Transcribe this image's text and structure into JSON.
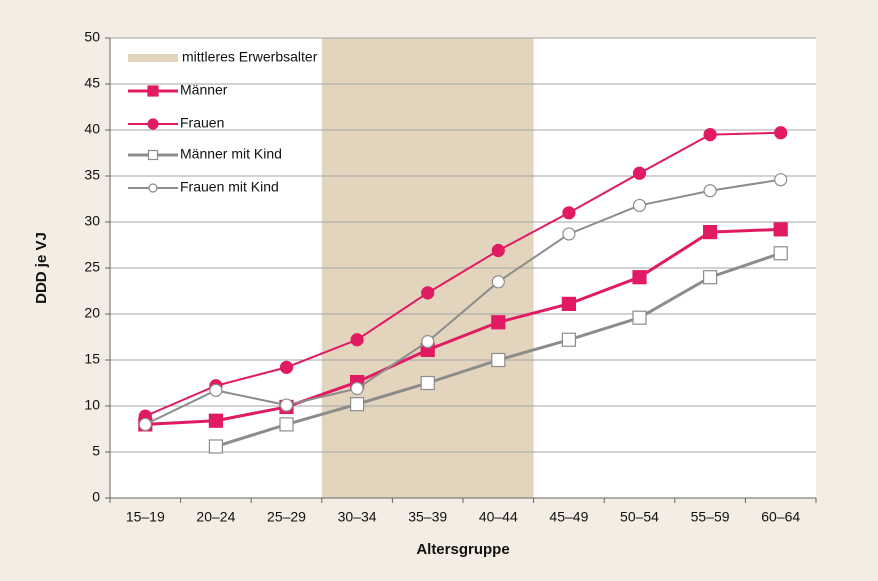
{
  "chart_data": {
    "type": "line",
    "x_label": "Altersgruppe",
    "y_label": "DDD je VJ",
    "categories": [
      "15–19",
      "20–24",
      "25–29",
      "30–34",
      "35–39",
      "40–44",
      "45–49",
      "50–54",
      "55–59",
      "60–64"
    ],
    "shaded_region": {
      "name": "mittleres Erwerbsalter",
      "color": "#e3d5bd",
      "span": [
        "30–34",
        "40–44"
      ]
    },
    "series": [
      {
        "name": "Männer",
        "color": "#e01b63",
        "marker": "square",
        "filled": true,
        "values": [
          8.0,
          8.4,
          9.9,
          12.6,
          16.1,
          19.1,
          21.1,
          24.0,
          28.9,
          29.2
        ]
      },
      {
        "name": "Frauen",
        "color": "#e01b63",
        "marker": "circle",
        "filled": true,
        "values": [
          8.9,
          12.2,
          14.2,
          17.2,
          22.3,
          26.9,
          31.0,
          35.3,
          39.5,
          39.7
        ]
      },
      {
        "name": "Männer mit Kind",
        "color": "#8c8c8c",
        "marker": "square",
        "filled": false,
        "values": [
          null,
          5.6,
          8.0,
          10.2,
          12.5,
          15.0,
          17.2,
          19.6,
          24.0,
          26.6
        ]
      },
      {
        "name": "Frauen mit Kind",
        "color": "#8c8c8c",
        "marker": "circle",
        "filled": false,
        "values": [
          8.0,
          11.7,
          10.1,
          11.9,
          17.0,
          23.5,
          28.7,
          31.8,
          33.4,
          34.6
        ]
      }
    ],
    "ylim": [
      0,
      50
    ],
    "yticks": [
      0,
      5,
      10,
      15,
      20,
      25,
      30,
      35,
      40,
      45,
      50
    ],
    "grid": true,
    "legend": "top-left"
  }
}
